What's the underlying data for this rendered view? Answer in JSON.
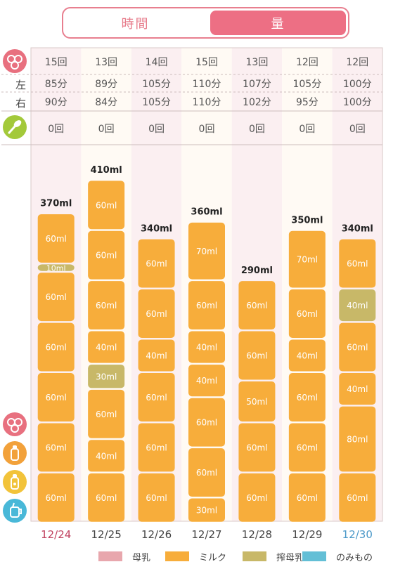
{
  "toggle": {
    "time_label": "時間",
    "amount_label": "量",
    "selected": "量"
  },
  "side_labels": {
    "left": "左",
    "right": "右"
  },
  "icons": {
    "breast": "breast-icon",
    "spoon": "spoon-icon",
    "milk_bottle": "milk-bottle-icon",
    "expressed_bottle": "expressed-milk-bottle-icon",
    "cup": "cup-icon"
  },
  "colors": {
    "breast_milk": "#e8a7ad",
    "formula": "#f7ad3b",
    "expressed": "#c8b868",
    "other": "#63bfd6",
    "accent_pink": "#ed6f84",
    "sunday": "#c0415f",
    "saturday": "#4a98c8"
  },
  "legend": [
    {
      "label": "母乳",
      "color": "#e8a7ad"
    },
    {
      "label": "ミルク",
      "color": "#f7ad3b"
    },
    {
      "label": "搾母乳",
      "color": "#c8b868"
    },
    {
      "label": "のみもの",
      "color": "#63bfd6"
    }
  ],
  "chart_data": {
    "type": "bar",
    "stacked": true,
    "unit": "ml",
    "categories": [
      "12/24",
      "12/25",
      "12/26",
      "12/27",
      "12/28",
      "12/29",
      "12/30"
    ],
    "totals": [
      "370ml",
      "410ml",
      "340ml",
      "360ml",
      "290ml",
      "350ml",
      "340ml"
    ],
    "breast_counts": [
      "15回",
      "13回",
      "14回",
      "15回",
      "13回",
      "12回",
      "12回"
    ],
    "left_minutes": [
      "85分",
      "89分",
      "105分",
      "110分",
      "107分",
      "105分",
      "100分"
    ],
    "right_minutes": [
      "90分",
      "84分",
      "105分",
      "110分",
      "102分",
      "95分",
      "100分"
    ],
    "food_counts": [
      "0回",
      "0回",
      "0回",
      "0回",
      "0回",
      "0回",
      "0回"
    ],
    "feeds": [
      [
        {
          "ml": 60,
          "type": "milk",
          "label": "60ml"
        },
        {
          "ml": 10,
          "type": "expressed",
          "label": "10ml"
        },
        {
          "ml": 60,
          "type": "milk",
          "label": "60ml"
        },
        {
          "ml": 60,
          "type": "milk",
          "label": "60ml"
        },
        {
          "ml": 60,
          "type": "milk",
          "label": "60ml"
        },
        {
          "ml": 60,
          "type": "milk",
          "label": "60ml"
        },
        {
          "ml": 60,
          "type": "milk",
          "label": "60ml"
        }
      ],
      [
        {
          "ml": 60,
          "type": "milk",
          "label": "60ml"
        },
        {
          "ml": 60,
          "type": "milk",
          "label": "60ml"
        },
        {
          "ml": 60,
          "type": "milk",
          "label": "60ml"
        },
        {
          "ml": 40,
          "type": "milk",
          "label": "40ml"
        },
        {
          "ml": 30,
          "type": "expressed",
          "label": "30ml"
        },
        {
          "ml": 60,
          "type": "milk",
          "label": "60ml"
        },
        {
          "ml": 40,
          "type": "milk",
          "label": "40ml"
        },
        {
          "ml": 60,
          "type": "milk",
          "label": "60ml"
        }
      ],
      [
        {
          "ml": 60,
          "type": "milk",
          "label": "60ml"
        },
        {
          "ml": 60,
          "type": "milk",
          "label": "60ml"
        },
        {
          "ml": 40,
          "type": "milk",
          "label": "40ml"
        },
        {
          "ml": 60,
          "type": "milk",
          "label": "60ml"
        },
        {
          "ml": 60,
          "type": "milk",
          "label": "60ml"
        },
        {
          "ml": 60,
          "type": "milk",
          "label": "60ml"
        }
      ],
      [
        {
          "ml": 70,
          "type": "milk",
          "label": "70ml"
        },
        {
          "ml": 60,
          "type": "milk",
          "label": "60ml"
        },
        {
          "ml": 40,
          "type": "milk",
          "label": "40ml"
        },
        {
          "ml": 40,
          "type": "milk",
          "label": "40ml"
        },
        {
          "ml": 60,
          "type": "milk",
          "label": "60ml"
        },
        {
          "ml": 60,
          "type": "milk",
          "label": "60ml"
        },
        {
          "ml": 30,
          "type": "milk",
          "label": "30ml"
        }
      ],
      [
        {
          "ml": 60,
          "type": "milk",
          "label": "60ml"
        },
        {
          "ml": 60,
          "type": "milk",
          "label": "60ml"
        },
        {
          "ml": 50,
          "type": "milk",
          "label": "50ml"
        },
        {
          "ml": 60,
          "type": "milk",
          "label": "60ml"
        },
        {
          "ml": 60,
          "type": "milk",
          "label": "60ml"
        }
      ],
      [
        {
          "ml": 70,
          "type": "milk",
          "label": "70ml"
        },
        {
          "ml": 60,
          "type": "milk",
          "label": "60ml"
        },
        {
          "ml": 40,
          "type": "milk",
          "label": "40ml"
        },
        {
          "ml": 60,
          "type": "milk",
          "label": "60ml"
        },
        {
          "ml": 60,
          "type": "milk",
          "label": "60ml"
        },
        {
          "ml": 60,
          "type": "milk",
          "label": "60ml"
        }
      ],
      [
        {
          "ml": 60,
          "type": "milk",
          "label": "60ml"
        },
        {
          "ml": 40,
          "type": "expressed",
          "label": "40ml"
        },
        {
          "ml": 60,
          "type": "milk",
          "label": "60ml"
        },
        {
          "ml": 40,
          "type": "milk",
          "label": "40ml"
        },
        {
          "ml": 80,
          "type": "milk",
          "label": "80ml"
        },
        {
          "ml": 60,
          "type": "milk",
          "label": "60ml"
        }
      ]
    ]
  }
}
